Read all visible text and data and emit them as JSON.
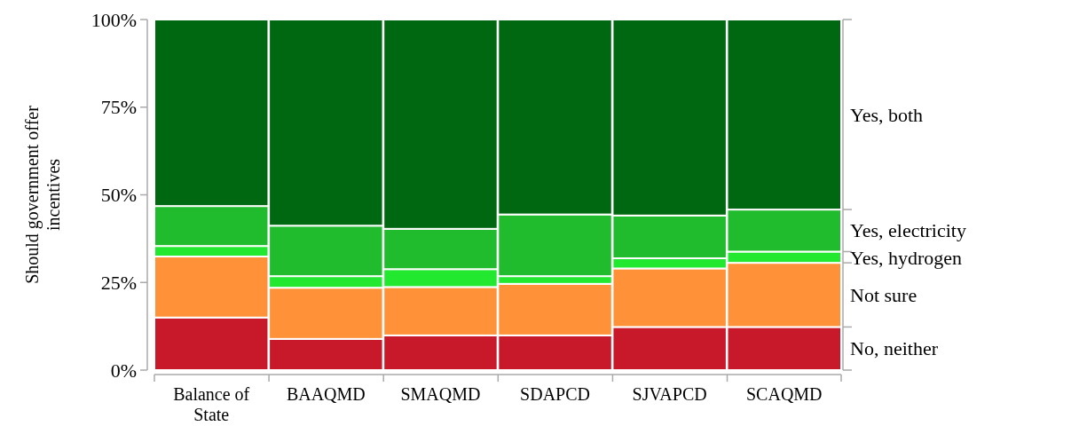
{
  "chart_data": {
    "type": "bar",
    "stacked": true,
    "ylabel": "Should government offer incentives",
    "categories": [
      "Balance of State",
      "BAAQMD",
      "SMAQMD",
      "SDAPCD",
      "SJVAPCD",
      "SCAQMD"
    ],
    "series": [
      {
        "name": "No, neither",
        "color": "#c8192b",
        "values": [
          15,
          8.9,
          9.9,
          9.9,
          12.3,
          12.3
        ]
      },
      {
        "name": "Not sure",
        "color": "#ff9238",
        "values": [
          17.4,
          14.6,
          13.8,
          14.7,
          16.7,
          18.3
        ]
      },
      {
        "name": "Yes, hydrogen",
        "color": "#22e830",
        "values": [
          3,
          3.3,
          5.1,
          2.2,
          2.9,
          3.2
        ]
      },
      {
        "name": "Yes, electricity",
        "color": "#21bb2e",
        "values": [
          11.4,
          14.4,
          11.5,
          17.6,
          12.2,
          12
        ]
      },
      {
        "name": "Yes, both",
        "color": "#006810",
        "values": [
          53.2,
          58.8,
          59.7,
          55.6,
          55.9,
          54.2
        ]
      }
    ],
    "ylim": [
      0,
      100
    ],
    "yticks": [
      {
        "value": 0,
        "label": "0%"
      },
      {
        "value": 25,
        "label": "25%"
      },
      {
        "value": 50,
        "label": "50%"
      },
      {
        "value": 75,
        "label": "75%"
      },
      {
        "value": 100,
        "label": "100%"
      }
    ],
    "grid": false,
    "legend": "right"
  }
}
